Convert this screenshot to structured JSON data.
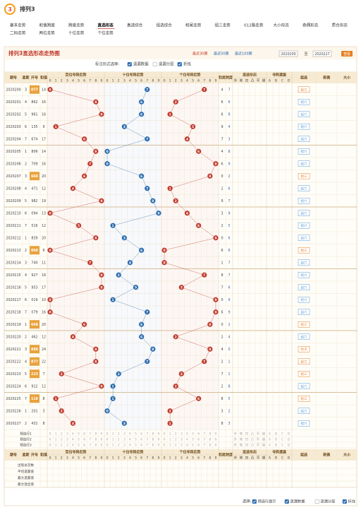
{
  "header": {
    "logo": "3",
    "title": "排列3"
  },
  "nav": [
    "基本走势",
    "和值跨度",
    "跨度走势",
    "直选形态",
    "直选综合",
    "组选综合",
    "和尾走势",
    "组三走势",
    "012路走势",
    "大小形态",
    "奇偶形态",
    "质合形态",
    "二码走势",
    "两位走势",
    "十位走势",
    "个位走势"
  ],
  "nav_active": 3,
  "panel": {
    "title": "排列3直选形态走势图",
    "periods": [
      "最近30期",
      "最近50期",
      "最近100期"
    ],
    "from": "2020200",
    "to_label": "至",
    "to": "2020227",
    "go": "查看"
  },
  "options": {
    "label": "标注形式选择:",
    "items": [
      "遗漏数据",
      "遗漏分层",
      "折线"
    ],
    "checked": [
      true,
      false,
      true
    ]
  },
  "columns": {
    "issue": "期号",
    "week": "星期",
    "number": "开号",
    "sum": "和值",
    "positions": [
      "百位号码走势",
      "十位号码走势",
      "个位号码走势"
    ],
    "digits": [
      "0",
      "1",
      "2",
      "3",
      "4",
      "5",
      "6",
      "7",
      "8",
      "9"
    ],
    "tail": "和尾",
    "span": "跨度",
    "form": "直选形态",
    "form_items": [
      "升",
      "降",
      "凹",
      "凸",
      "平",
      "顺"
    ],
    "omit": "号码遗漏",
    "omit_items": [
      "A",
      "B",
      "C",
      "D"
    ],
    "group": "组选",
    "shape": "奇偶",
    "size": "大小"
  },
  "rows": [
    {
      "issue": "2020200",
      "week": 3,
      "number": "077",
      "digits": [
        0,
        7,
        7
      ],
      "sum": 14,
      "tail": 4,
      "span": 7,
      "group": "组三"
    },
    {
      "issue": "2020201",
      "week": 4,
      "number": "862",
      "digits": [
        8,
        6,
        2
      ],
      "sum": 16,
      "tail": 6,
      "span": 6,
      "group": "组六"
    },
    {
      "issue": "2020202",
      "week": 5,
      "number": "961",
      "digits": [
        9,
        6,
        1
      ],
      "sum": 16,
      "tail": 6,
      "span": 8,
      "group": "组六"
    },
    {
      "issue": "2020203",
      "week": 6,
      "number": "135",
      "digits": [
        1,
        3,
        5
      ],
      "sum": 9,
      "tail": 9,
      "span": 4,
      "group": "组六"
    },
    {
      "issue": "2020204",
      "week": 7,
      "number": "674",
      "digits": [
        6,
        7,
        4
      ],
      "sum": 17,
      "tail": 7,
      "span": 3,
      "group": "组六"
    },
    {
      "issue": "2020205",
      "week": 1,
      "number": "806",
      "digits": [
        8,
        0,
        6
      ],
      "sum": 14,
      "tail": 4,
      "span": 8,
      "group": "组六"
    },
    {
      "issue": "2020206",
      "week": 2,
      "number": "709",
      "digits": [
        7,
        0,
        9
      ],
      "sum": 16,
      "tail": 6,
      "span": 9,
      "group": "组六"
    },
    {
      "issue": "2020207",
      "week": 3,
      "number": "668",
      "digits": [
        6,
        6,
        8
      ],
      "sum": 20,
      "tail": 0,
      "span": 2,
      "group": "组三"
    },
    {
      "issue": "2020208",
      "week": 4,
      "number": "471",
      "digits": [
        4,
        7,
        1
      ],
      "sum": 12,
      "tail": 2,
      "span": 6,
      "group": "组六"
    },
    {
      "issue": "2020209",
      "week": 5,
      "number": "982",
      "digits": [
        9,
        8,
        2
      ],
      "sum": 19,
      "tail": 9,
      "span": 7,
      "group": "组六"
    },
    {
      "issue": "2020210",
      "week": 6,
      "number": "094",
      "digits": [
        0,
        9,
        4
      ],
      "sum": 13,
      "tail": 3,
      "span": 9,
      "group": "组六"
    },
    {
      "issue": "2020211",
      "week": 7,
      "number": "516",
      "digits": [
        5,
        1,
        6
      ],
      "sum": 12,
      "tail": 2,
      "span": 5,
      "group": "组六"
    },
    {
      "issue": "2020212",
      "week": 1,
      "number": "839",
      "digits": [
        8,
        3,
        9
      ],
      "sum": 20,
      "tail": 0,
      "span": 6,
      "group": "组六"
    },
    {
      "issue": "2020213",
      "week": 2,
      "number": "060",
      "digits": [
        0,
        6,
        0
      ],
      "sum": 6,
      "tail": 6,
      "span": 6,
      "group": "组三"
    },
    {
      "issue": "2020214",
      "week": 3,
      "number": "740",
      "digits": [
        7,
        4,
        0
      ],
      "sum": 11,
      "tail": 1,
      "span": 7,
      "group": "组六"
    },
    {
      "issue": "2020215",
      "week": 4,
      "number": "927",
      "digits": [
        9,
        2,
        7
      ],
      "sum": 18,
      "tail": 8,
      "span": 7,
      "group": "组六"
    },
    {
      "issue": "2020216",
      "week": 5,
      "number": "953",
      "digits": [
        9,
        5,
        3
      ],
      "sum": 17,
      "tail": 7,
      "span": 6,
      "group": "组六"
    },
    {
      "issue": "2020217",
      "week": 6,
      "number": "019",
      "digits": [
        0,
        1,
        9
      ],
      "sum": 10,
      "tail": 0,
      "span": 9,
      "group": "组六"
    },
    {
      "issue": "2020218",
      "week": 7,
      "number": "079",
      "digits": [
        0,
        7,
        9
      ],
      "sum": 16,
      "tail": 6,
      "span": 9,
      "group": "组六"
    },
    {
      "issue": "2020219",
      "week": 1,
      "number": "668",
      "digits": [
        6,
        6,
        8
      ],
      "sum": 20,
      "tail": 0,
      "span": 2,
      "group": "组三"
    },
    {
      "issue": "2020220",
      "week": 2,
      "number": "462",
      "digits": [
        4,
        6,
        2
      ],
      "sum": 12,
      "tail": 2,
      "span": 4,
      "group": "组六"
    },
    {
      "issue": "2020221",
      "week": 3,
      "number": "888",
      "digits": [
        8,
        8,
        8
      ],
      "sum": 24,
      "tail": 4,
      "span": 0,
      "group": "豹子"
    },
    {
      "issue": "2020222",
      "week": 4,
      "number": "877",
      "digits": [
        8,
        7,
        7
      ],
      "sum": 22,
      "tail": 2,
      "span": 1,
      "group": "组三"
    },
    {
      "issue": "2020223",
      "week": 5,
      "number": "223",
      "digits": [
        2,
        2,
        3
      ],
      "sum": 7,
      "tail": 7,
      "span": 1,
      "group": "组三"
    },
    {
      "issue": "2020224",
      "week": 6,
      "number": "912",
      "digits": [
        9,
        1,
        2
      ],
      "sum": 12,
      "tail": 2,
      "span": 8,
      "group": "组六"
    },
    {
      "issue": "2020225",
      "week": 7,
      "number": "116",
      "digits": [
        1,
        1,
        6
      ],
      "sum": 8,
      "tail": 8,
      "span": 5,
      "group": "组三"
    },
    {
      "issue": "2020226",
      "week": 1,
      "number": "201",
      "digits": [
        2,
        0,
        1
      ],
      "sum": 3,
      "tail": 3,
      "span": 2,
      "group": "组六"
    },
    {
      "issue": "2020227",
      "week": 2,
      "number": "431",
      "digits": [
        4,
        3,
        1
      ],
      "sum": 8,
      "tail": 8,
      "span": 3,
      "group": "组六"
    }
  ],
  "preselect": [
    "预选行1",
    "预选行2",
    "预选行3"
  ],
  "stats": [
    "出现总次数",
    "平均遗漏值",
    "最大遗漏值",
    "最大连出值"
  ],
  "footer": {
    "label": "选择:",
    "items": [
      "预选行提示",
      "遗漏数据",
      "遗漏分层",
      "折线"
    ],
    "checked": [
      true,
      true,
      false,
      true
    ]
  },
  "ball_colors": [
    "#c0392b",
    "#2b6cb0",
    "#c0392b"
  ]
}
